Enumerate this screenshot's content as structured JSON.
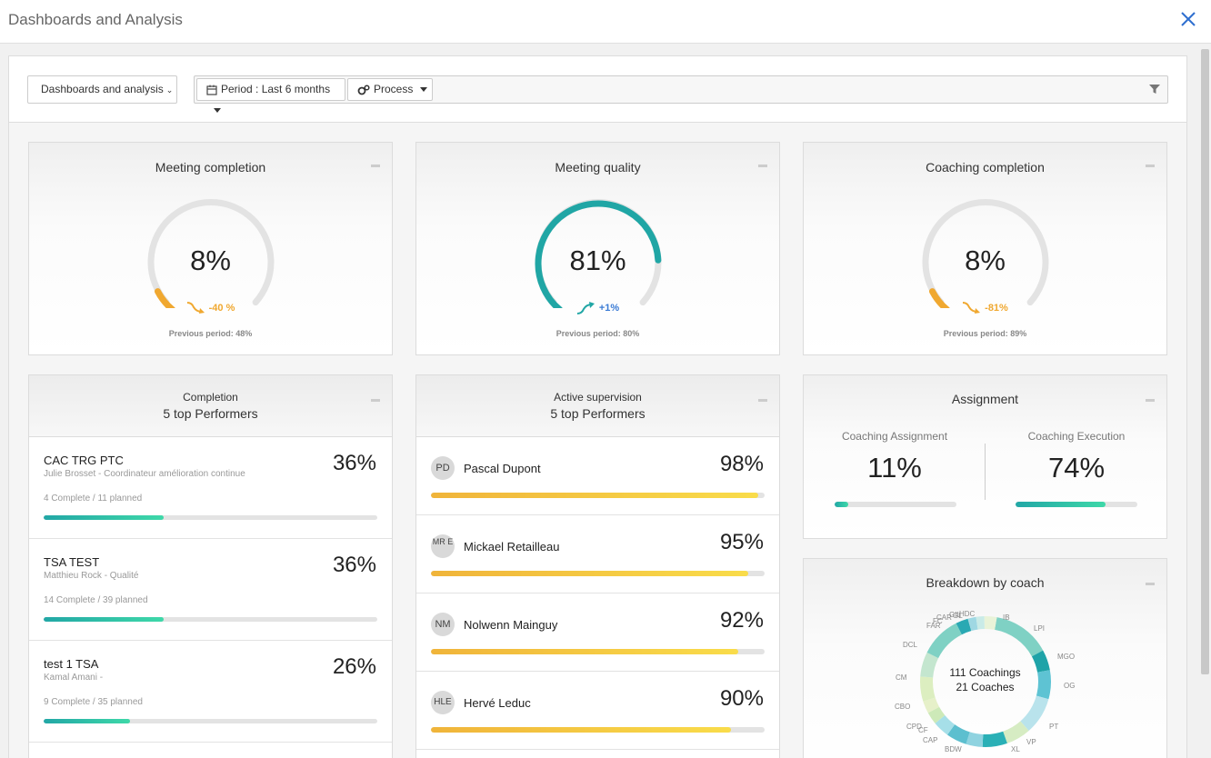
{
  "window": {
    "title": "Dashboards and Analysis"
  },
  "filters": {
    "view_selector": "Dashboards and analysis",
    "period": "Period : Last 6 months",
    "process": "Process"
  },
  "colors": {
    "accent_teal": "#20a6a5",
    "warning_orange": "#f0a830",
    "trend_up_blue": "#3a7bd5"
  },
  "kpis": [
    {
      "title": "Meeting completion",
      "value": "8%",
      "percent": 8,
      "trend": "-40 %",
      "trend_dir": "down",
      "previous": "Previous period: 48%"
    },
    {
      "title": "Meeting quality",
      "value": "81%",
      "percent": 81,
      "trend": "+1%",
      "trend_dir": "up",
      "previous": "Previous period: 80%"
    },
    {
      "title": "Coaching completion",
      "value": "8%",
      "percent": 8,
      "trend": "-81%",
      "trend_dir": "down",
      "previous": "Previous period: 89%"
    }
  ],
  "completion": {
    "title_line1": "Completion",
    "title_line2": "5 top Performers",
    "rows": [
      {
        "name": "CAC TRG PTC",
        "sub": "Julie Brosset - Coordinateur amélioration continue",
        "meta": "4 Complete / 11 planned",
        "value": "36%",
        "percent": 36
      },
      {
        "name": "TSA TEST",
        "sub": "Matthieu Rock - Qualité",
        "meta": "14 Complete / 39 planned",
        "value": "36%",
        "percent": 36
      },
      {
        "name": "test 1 TSA",
        "sub": "Kamal Amani -",
        "meta": "9 Complete / 35 planned",
        "value": "26%",
        "percent": 26
      }
    ]
  },
  "supervision": {
    "title_line1": "Active supervision",
    "title_line2": "5 top Performers",
    "rows": [
      {
        "initials": "PD",
        "name": "Pascal Dupont",
        "value": "98%",
        "percent": 98
      },
      {
        "initials": "MR E",
        "name": "Mickael Retailleau",
        "value": "95%",
        "percent": 95
      },
      {
        "initials": "NM",
        "name": "Nolwenn Mainguy",
        "value": "92%",
        "percent": 92
      },
      {
        "initials": "HLE",
        "name": "Hervé Leduc",
        "value": "90%",
        "percent": 90
      }
    ]
  },
  "assignment": {
    "title": "Assignment",
    "left_label": "Coaching Assignment",
    "left_value": "11%",
    "left_percent": 11,
    "right_label": "Coaching Execution",
    "right_value": "74%",
    "right_percent": 74
  },
  "breakdown": {
    "title": "Breakdown by coach",
    "center_line1": "111 Coachings",
    "center_line2": "21 Coaches",
    "labels": [
      "IB",
      "LPI",
      "MGO",
      "OG",
      "PT",
      "VP",
      "XL",
      "BDW",
      "CAP",
      "CF",
      "CPD",
      "CBO",
      "CM",
      "DCL",
      "FAR",
      "FC",
      "CAR",
      "GIL",
      "GL",
      "HDC"
    ]
  }
}
